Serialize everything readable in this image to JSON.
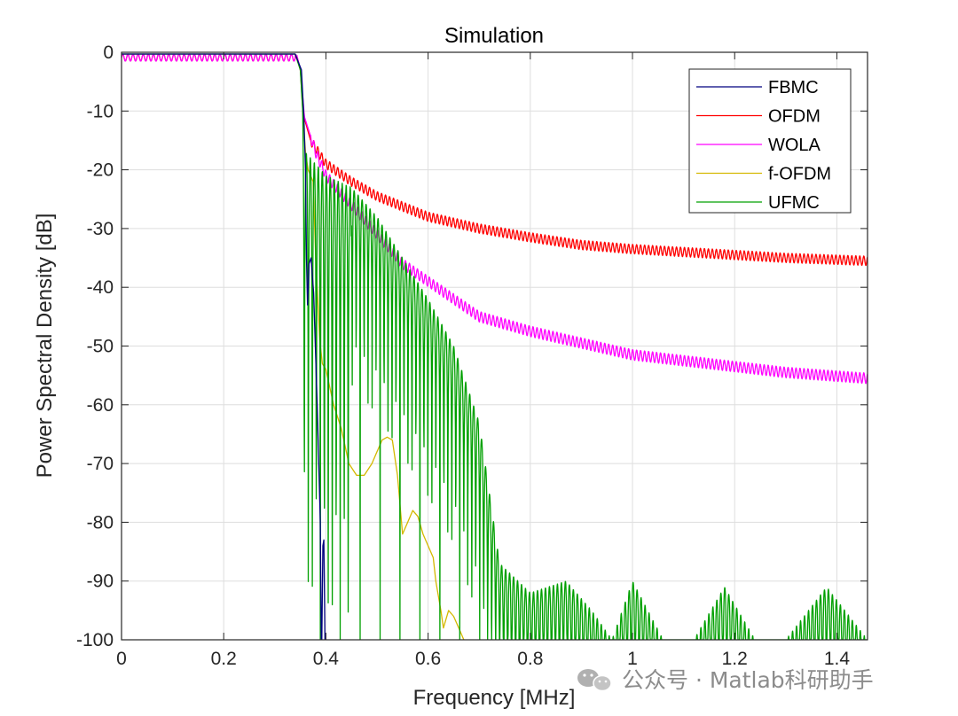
{
  "chart_data": {
    "type": "line",
    "title": "Simulation",
    "xlabel": "Frequency [MHz]",
    "ylabel": "Power Spectral Density [dB]",
    "xlim": [
      0,
      1.46
    ],
    "ylim": [
      -100,
      0
    ],
    "xticks": [
      0,
      0.2,
      0.4,
      0.6,
      0.8,
      1,
      1.2,
      1.4
    ],
    "xtick_labels": [
      "0",
      "0.2",
      "0.4",
      "0.6",
      "0.8",
      "1",
      "1.2",
      "1.4"
    ],
    "yticks": [
      0,
      -10,
      -20,
      -30,
      -40,
      -50,
      -60,
      -70,
      -80,
      -90,
      -100
    ],
    "ytick_labels": [
      "0",
      "-10",
      "-20",
      "-30",
      "-40",
      "-50",
      "-60",
      "-70",
      "-80",
      "-90",
      "-100"
    ],
    "grid": true,
    "legend_position": "top-right",
    "series": [
      {
        "name": "FBMC",
        "color": "#00007f",
        "points": [
          [
            0,
            -0.3
          ],
          [
            0.34,
            -0.3
          ],
          [
            0.352,
            -3
          ],
          [
            0.357,
            -11
          ],
          [
            0.36,
            -20
          ],
          [
            0.362,
            -35
          ],
          [
            0.364,
            -43
          ],
          [
            0.367,
            -36
          ],
          [
            0.371,
            -35
          ],
          [
            0.376,
            -41
          ],
          [
            0.383,
            -60
          ],
          [
            0.389,
            -80
          ],
          [
            0.391,
            -100
          ],
          [
            0.392,
            -100
          ],
          [
            0.394,
            -84
          ],
          [
            0.396,
            -83
          ],
          [
            0.398,
            -100
          ]
        ]
      },
      {
        "name": "OFDM",
        "color": "#ff0000",
        "ripple": 0.8,
        "ripple_period": 0.0078,
        "points": [
          [
            0,
            -0.5
          ],
          [
            0.343,
            -0.5
          ],
          [
            0.35,
            -3
          ],
          [
            0.357,
            -11
          ],
          [
            0.37,
            -15
          ],
          [
            0.4,
            -19
          ],
          [
            0.45,
            -22
          ],
          [
            0.5,
            -24.5
          ],
          [
            0.6,
            -28
          ],
          [
            0.7,
            -30
          ],
          [
            0.8,
            -31.5
          ],
          [
            0.9,
            -32.8
          ],
          [
            1.0,
            -33.5
          ],
          [
            1.2,
            -34.5
          ],
          [
            1.3,
            -35
          ],
          [
            1.46,
            -35.5
          ]
        ]
      },
      {
        "name": "WOLA",
        "color": "#ff00ff",
        "ripple": 0.9,
        "ripple_period": 0.0078,
        "points": [
          [
            0,
            -0.5
          ],
          [
            0.343,
            -0.5
          ],
          [
            0.35,
            -3
          ],
          [
            0.358,
            -11
          ],
          [
            0.38,
            -17
          ],
          [
            0.4,
            -21
          ],
          [
            0.45,
            -26
          ],
          [
            0.5,
            -31
          ],
          [
            0.55,
            -36
          ],
          [
            0.6,
            -39
          ],
          [
            0.65,
            -42
          ],
          [
            0.7,
            -45
          ],
          [
            0.8,
            -47.5
          ],
          [
            0.9,
            -49.5
          ],
          [
            1.0,
            -51.5
          ],
          [
            1.1,
            -52.5
          ],
          [
            1.2,
            -53.5
          ],
          [
            1.3,
            -54.5
          ],
          [
            1.46,
            -55.5
          ]
        ]
      },
      {
        "name": "f-OFDM",
        "color": "#d4b800",
        "points": [
          [
            0,
            -0.3
          ],
          [
            0.34,
            -0.3
          ],
          [
            0.35,
            -3
          ],
          [
            0.357,
            -13
          ],
          [
            0.36,
            -17
          ],
          [
            0.365,
            -20
          ],
          [
            0.375,
            -22
          ],
          [
            0.38,
            -35
          ],
          [
            0.384,
            -42
          ],
          [
            0.388,
            -49
          ],
          [
            0.393,
            -53
          ],
          [
            0.4,
            -54
          ],
          [
            0.415,
            -60
          ],
          [
            0.43,
            -64
          ],
          [
            0.445,
            -70
          ],
          [
            0.46,
            -72
          ],
          [
            0.475,
            -72
          ],
          [
            0.49,
            -70
          ],
          [
            0.5,
            -68
          ],
          [
            0.51,
            -66
          ],
          [
            0.52,
            -65.5
          ],
          [
            0.53,
            -66
          ],
          [
            0.54,
            -72
          ],
          [
            0.55,
            -82
          ],
          [
            0.56,
            -80
          ],
          [
            0.57,
            -78
          ],
          [
            0.58,
            -79
          ],
          [
            0.59,
            -82
          ],
          [
            0.6,
            -84
          ],
          [
            0.61,
            -86
          ],
          [
            0.615,
            -90
          ],
          [
            0.625,
            -95
          ],
          [
            0.63,
            -98
          ],
          [
            0.64,
            -95
          ],
          [
            0.65,
            -96
          ],
          [
            0.66,
            -98
          ],
          [
            0.67,
            -100
          ]
        ]
      },
      {
        "name": "UFMC",
        "color": "#00a000",
        "points": [
          [
            0,
            -0.3
          ],
          [
            0.34,
            -0.3
          ],
          [
            0.35,
            -3
          ],
          [
            0.356,
            -12
          ],
          [
            0.36,
            -17
          ],
          [
            0.4,
            -21
          ],
          [
            0.45,
            -23
          ],
          [
            0.5,
            -28
          ],
          [
            0.55,
            -35
          ],
          [
            0.6,
            -42
          ],
          [
            0.65,
            -50
          ],
          [
            0.7,
            -63
          ],
          [
            0.74,
            -87
          ],
          [
            0.8,
            -92
          ],
          [
            0.87,
            -90
          ],
          [
            0.92,
            -95
          ],
          [
            0.96,
            -100
          ],
          [
            1.0,
            -90
          ],
          [
            1.06,
            -100
          ],
          [
            1.12,
            -100
          ],
          [
            1.18,
            -91
          ],
          [
            1.24,
            -100
          ],
          [
            1.3,
            -100
          ],
          [
            1.38,
            -91
          ],
          [
            1.46,
            -100
          ]
        ]
      }
    ]
  },
  "watermark": {
    "text": "公众号 · Matlab科研助手"
  }
}
